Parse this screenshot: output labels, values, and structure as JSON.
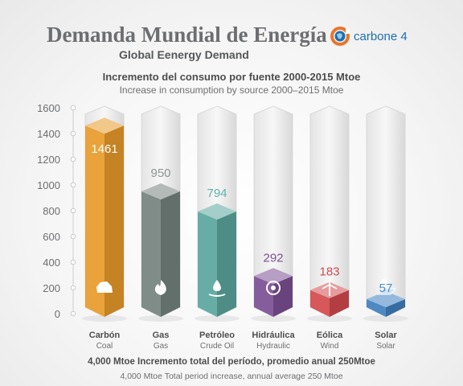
{
  "header": {
    "title": "Demanda Mundial de Energía",
    "subtitle": "Global Eenergy Demand",
    "brand": "carbone 4"
  },
  "chart_data": {
    "type": "bar",
    "title": "Incremento del consumo por fuente 2000-2015 Mtoe",
    "subtitle": "Increase in consumption by source 2000–2015 Mtoe",
    "categories": [
      "Carbón",
      "Gas",
      "Petróleo",
      "Hidráulica",
      "Eólica",
      "Solar"
    ],
    "categories_en": [
      "Coal",
      "Gas",
      "Crude Oil",
      "Hydraulic",
      "Wind",
      "Solar"
    ],
    "values": [
      1461,
      950,
      794,
      292,
      183,
      57
    ],
    "value_labels": [
      "1461",
      "950",
      "794",
      "292",
      "183",
      "57"
    ],
    "icons": [
      "coal-icon",
      "flame-icon",
      "oil-drop-icon",
      "hydro-icon",
      "wind-turbine-icon",
      "solar-panel-icon"
    ],
    "colors": [
      "#e89a2a",
      "#74827d",
      "#5aa69e",
      "#7b4f93",
      "#d2494c",
      "#3f7fbf"
    ],
    "label_colors": [
      "#ffffff",
      "#8e9491",
      "#5fb3aa",
      "#7b4f93",
      "#cf4a4f",
      "#4a8fc9"
    ],
    "ylim": [
      0,
      1600
    ],
    "yticks": [
      0,
      200,
      400,
      600,
      800,
      1000,
      1200,
      1400,
      1600
    ],
    "grid": false
  },
  "footer": {
    "line1": "4,000 Mtoe Incremento total del período, promedio anual 250Mtoe",
    "line2": "4,000 Mtoe Total period increase, annual average 250 Mtoe"
  }
}
